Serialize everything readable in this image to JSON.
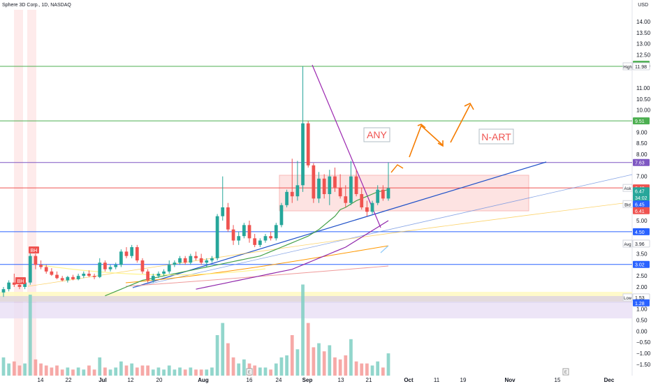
{
  "header": {
    "title": "Sphere 3D Corp., 1D, NASDAQ",
    "currency": "USD"
  },
  "chart_data": {
    "type": "candlestick",
    "ylim": [
      -1.5,
      14.5
    ],
    "y_ticks": [
      14.0,
      13.5,
      13.0,
      12.5,
      12.0,
      11.0,
      10.5,
      10.0,
      9.0,
      8.5,
      8.0,
      7.0,
      6.5,
      5.5,
      5.0,
      4.0,
      3.5,
      2.5,
      2.0,
      1.5,
      1.0,
      0.5,
      0.0,
      -0.5,
      -1.0,
      -1.5
    ],
    "y_tick_labels": [
      "14.00",
      "13.50",
      "13.00",
      "12.50",
      "12.00",
      "11.00",
      "10.50",
      "10.00",
      "9.00",
      "8.50",
      "8.00",
      "7.00",
      "6.50",
      "5.50",
      "5.00",
      "4.00",
      "3.50",
      "2.50",
      "2.00",
      "1.50",
      "1.00",
      "0.50",
      "0.00",
      "−0.50",
      "−1.00",
      "−1.50"
    ],
    "x_labels": [
      "14",
      "22",
      "Jul",
      "12",
      "20",
      "Aug",
      "16",
      "24",
      "Sep",
      "13",
      "21",
      "Oct",
      "11",
      "19",
      "Nov",
      "15",
      "Dec"
    ],
    "price_tags": [
      {
        "label": "12.07",
        "value": 12.07,
        "color": "#4caf50"
      },
      {
        "label": "11.98",
        "value": 11.98,
        "color": "#ffffff",
        "text_color": "#131722",
        "side_label": "High"
      },
      {
        "label": "9.51",
        "value": 9.51,
        "color": "#4caf50"
      },
      {
        "label": "7.63",
        "value": 7.63,
        "color": "#7e57c2"
      },
      {
        "label": "6.48",
        "value": 6.48,
        "color": "#ef5350",
        "side_label": "Ask"
      },
      {
        "label": "6.47",
        "value": 6.35,
        "color": "#26a69a"
      },
      {
        "label": "34:02",
        "value": 6.05,
        "color": "#26a69a"
      },
      {
        "label": "6.45",
        "value": 5.75,
        "color": "#2962ff",
        "side_label": "Bid"
      },
      {
        "label": "6.41",
        "value": 5.45,
        "color": "#ef5350"
      },
      {
        "label": "4.50",
        "value": 4.5,
        "color": "#2962ff"
      },
      {
        "label": "3.96",
        "value": 3.96,
        "color": "#ffffff",
        "text_color": "#131722",
        "side_label": "Avg"
      },
      {
        "label": "3.02",
        "value": 3.02,
        "color": "#2962ff"
      },
      {
        "label": "1.53",
        "value": 1.53,
        "color": "#ffffff",
        "text_color": "#131722",
        "side_label": "Low"
      },
      {
        "label": "1.28",
        "value": 1.28,
        "color": "#2962ff"
      }
    ],
    "horizontal_lines": [
      {
        "value": 11.98,
        "color": "#4caf50"
      },
      {
        "value": 9.51,
        "color": "#4caf50"
      },
      {
        "value": 7.63,
        "color": "#7e57c2"
      },
      {
        "value": 6.48,
        "color": "#ef5350"
      },
      {
        "value": 4.5,
        "color": "#2962ff"
      },
      {
        "value": 3.02,
        "color": "#2962ff"
      }
    ],
    "annotations": [
      {
        "text": "ANY",
        "color": "#ef5350"
      },
      {
        "text": "N-ART",
        "color": "#ef5350"
      },
      {
        "text": "BH",
        "color": "#ef5350"
      },
      {
        "text": "BH",
        "color": "#ef5350"
      }
    ],
    "event_markers": [
      "E",
      "E"
    ],
    "candles": [
      {
        "o": 1.75,
        "h": 2.0,
        "l": 1.55,
        "c": 1.9
      },
      {
        "o": 1.9,
        "h": 2.3,
        "l": 1.8,
        "c": 2.2
      },
      {
        "o": 2.2,
        "h": 2.6,
        "l": 2.0,
        "c": 2.1
      },
      {
        "o": 2.1,
        "h": 2.3,
        "l": 1.9,
        "c": 2.0
      },
      {
        "o": 2.0,
        "h": 2.4,
        "l": 1.9,
        "c": 2.2
      },
      {
        "o": 2.2,
        "h": 3.6,
        "l": 2.1,
        "c": 3.4
      },
      {
        "o": 3.4,
        "h": 3.5,
        "l": 2.8,
        "c": 3.0
      },
      {
        "o": 3.0,
        "h": 3.2,
        "l": 2.8,
        "c": 2.9
      },
      {
        "o": 2.9,
        "h": 3.0,
        "l": 2.6,
        "c": 2.7
      },
      {
        "o": 2.7,
        "h": 2.85,
        "l": 2.5,
        "c": 2.55
      },
      {
        "o": 2.55,
        "h": 2.7,
        "l": 2.35,
        "c": 2.4
      },
      {
        "o": 2.4,
        "h": 2.5,
        "l": 2.25,
        "c": 2.3
      },
      {
        "o": 2.3,
        "h": 2.5,
        "l": 2.2,
        "c": 2.45
      },
      {
        "o": 2.45,
        "h": 2.55,
        "l": 2.3,
        "c": 2.35
      },
      {
        "o": 2.35,
        "h": 2.6,
        "l": 2.3,
        "c": 2.5
      },
      {
        "o": 2.5,
        "h": 2.7,
        "l": 2.4,
        "c": 2.6
      },
      {
        "o": 2.6,
        "h": 2.75,
        "l": 2.45,
        "c": 2.5
      },
      {
        "o": 2.5,
        "h": 2.6,
        "l": 2.35,
        "c": 2.45
      },
      {
        "o": 2.45,
        "h": 3.3,
        "l": 2.4,
        "c": 3.1
      },
      {
        "o": 3.1,
        "h": 3.2,
        "l": 2.7,
        "c": 2.8
      },
      {
        "o": 2.8,
        "h": 3.0,
        "l": 2.7,
        "c": 2.9
      },
      {
        "o": 2.9,
        "h": 3.1,
        "l": 2.8,
        "c": 3.0
      },
      {
        "o": 3.0,
        "h": 3.7,
        "l": 2.9,
        "c": 3.6
      },
      {
        "o": 3.6,
        "h": 3.8,
        "l": 3.3,
        "c": 3.4
      },
      {
        "o": 3.4,
        "h": 3.9,
        "l": 3.3,
        "c": 3.8
      },
      {
        "o": 3.8,
        "h": 3.9,
        "l": 3.1,
        "c": 3.2
      },
      {
        "o": 3.2,
        "h": 3.3,
        "l": 2.6,
        "c": 2.7
      },
      {
        "o": 2.7,
        "h": 2.8,
        "l": 2.2,
        "c": 2.3
      },
      {
        "o": 2.3,
        "h": 2.6,
        "l": 2.2,
        "c": 2.5
      },
      {
        "o": 2.5,
        "h": 2.7,
        "l": 2.4,
        "c": 2.6
      },
      {
        "o": 2.6,
        "h": 2.8,
        "l": 2.5,
        "c": 2.7
      },
      {
        "o": 2.7,
        "h": 3.2,
        "l": 2.6,
        "c": 3.0
      },
      {
        "o": 3.0,
        "h": 3.2,
        "l": 2.9,
        "c": 3.1
      },
      {
        "o": 3.1,
        "h": 3.4,
        "l": 3.0,
        "c": 3.3
      },
      {
        "o": 3.3,
        "h": 3.4,
        "l": 3.0,
        "c": 3.1
      },
      {
        "o": 3.1,
        "h": 3.5,
        "l": 3.0,
        "c": 3.4
      },
      {
        "o": 3.4,
        "h": 3.6,
        "l": 3.2,
        "c": 3.3
      },
      {
        "o": 3.3,
        "h": 3.5,
        "l": 3.0,
        "c": 3.1
      },
      {
        "o": 3.1,
        "h": 3.3,
        "l": 2.9,
        "c": 3.2
      },
      {
        "o": 3.2,
        "h": 3.4,
        "l": 3.1,
        "c": 3.3
      },
      {
        "o": 3.3,
        "h": 5.3,
        "l": 3.2,
        "c": 5.2
      },
      {
        "o": 5.2,
        "h": 7.0,
        "l": 5.0,
        "c": 5.6
      },
      {
        "o": 5.6,
        "h": 5.8,
        "l": 4.5,
        "c": 4.6
      },
      {
        "o": 4.6,
        "h": 4.8,
        "l": 3.9,
        "c": 4.1
      },
      {
        "o": 4.1,
        "h": 4.5,
        "l": 3.9,
        "c": 4.3
      },
      {
        "o": 4.3,
        "h": 4.9,
        "l": 4.2,
        "c": 4.8
      },
      {
        "o": 4.8,
        "h": 5.0,
        "l": 4.0,
        "c": 4.2
      },
      {
        "o": 4.2,
        "h": 4.4,
        "l": 3.8,
        "c": 3.9
      },
      {
        "o": 3.9,
        "h": 4.2,
        "l": 3.8,
        "c": 4.1
      },
      {
        "o": 4.1,
        "h": 4.4,
        "l": 4.0,
        "c": 4.3
      },
      {
        "o": 4.3,
        "h": 4.5,
        "l": 4.1,
        "c": 4.2
      },
      {
        "o": 4.2,
        "h": 4.9,
        "l": 4.1,
        "c": 4.8
      },
      {
        "o": 4.8,
        "h": 5.8,
        "l": 4.7,
        "c": 5.7
      },
      {
        "o": 5.7,
        "h": 6.4,
        "l": 5.6,
        "c": 6.3
      },
      {
        "o": 6.3,
        "h": 7.8,
        "l": 5.8,
        "c": 6.1
      },
      {
        "o": 6.1,
        "h": 7.7,
        "l": 5.9,
        "c": 6.6
      },
      {
        "o": 6.6,
        "h": 11.98,
        "l": 6.3,
        "c": 9.4
      },
      {
        "o": 9.4,
        "h": 9.5,
        "l": 7.4,
        "c": 7.5
      },
      {
        "o": 7.5,
        "h": 7.6,
        "l": 5.8,
        "c": 6.0
      },
      {
        "o": 6.0,
        "h": 7.2,
        "l": 5.8,
        "c": 6.9
      },
      {
        "o": 6.9,
        "h": 7.1,
        "l": 6.0,
        "c": 6.2
      },
      {
        "o": 6.2,
        "h": 7.3,
        "l": 5.7,
        "c": 7.0
      },
      {
        "o": 7.0,
        "h": 7.4,
        "l": 6.3,
        "c": 6.5
      },
      {
        "o": 6.5,
        "h": 7.1,
        "l": 6.0,
        "c": 6.1
      },
      {
        "o": 6.1,
        "h": 6.6,
        "l": 5.6,
        "c": 5.8
      },
      {
        "o": 5.8,
        "h": 7.7,
        "l": 5.7,
        "c": 7.0
      },
      {
        "o": 7.0,
        "h": 7.3,
        "l": 6.1,
        "c": 6.2
      },
      {
        "o": 6.2,
        "h": 6.5,
        "l": 5.5,
        "c": 5.6
      },
      {
        "o": 5.6,
        "h": 5.9,
        "l": 5.2,
        "c": 5.4
      },
      {
        "o": 5.4,
        "h": 5.9,
        "l": 5.3,
        "c": 5.8
      },
      {
        "o": 5.8,
        "h": 6.6,
        "l": 5.7,
        "c": 6.4
      },
      {
        "o": 6.4,
        "h": 6.6,
        "l": 5.9,
        "c": 6.0
      },
      {
        "o": 6.0,
        "h": 7.63,
        "l": 5.9,
        "c": 6.47
      }
    ],
    "volumes": [
      0.9,
      0.6,
      0.7,
      0.5,
      0.6,
      4.0,
      0.8,
      0.6,
      0.5,
      0.4,
      0.5,
      0.3,
      0.4,
      0.3,
      0.4,
      0.3,
      0.5,
      0.3,
      0.9,
      0.4,
      0.3,
      0.4,
      0.7,
      0.5,
      0.6,
      0.4,
      0.5,
      0.5,
      0.3,
      0.4,
      0.3,
      0.5,
      0.3,
      0.4,
      0.3,
      0.4,
      0.3,
      0.3,
      0.3,
      0.4,
      2.0,
      2.6,
      1.6,
      0.9,
      0.6,
      0.8,
      0.6,
      0.5,
      0.4,
      0.4,
      0.3,
      0.6,
      0.9,
      1.0,
      2.0,
      1.3,
      4.5,
      2.6,
      1.4,
      1.6,
      1.2,
      1.5,
      0.9,
      0.8,
      1.0,
      1.8,
      0.7,
      0.6,
      0.6,
      0.5,
      0.7,
      0.4,
      1.1
    ],
    "ma_green": [
      1.6,
      1.7,
      1.8,
      1.9,
      2.0,
      2.1,
      2.2,
      2.3,
      2.35,
      2.4,
      2.45,
      2.5,
      2.55,
      2.6,
      2.65,
      2.7,
      2.75,
      2.8,
      2.85,
      2.9,
      2.95,
      3.0,
      3.05,
      3.1,
      3.15,
      3.2,
      3.25,
      3.3,
      3.35,
      3.4,
      3.5,
      3.6,
      3.7,
      3.8,
      3.9,
      4.0,
      4.1,
      4.2,
      4.3,
      4.45,
      4.6,
      4.8,
      5.0,
      5.2,
      5.5,
      5.6,
      5.75,
      5.9,
      6.0,
      6.1,
      6.2,
      6.3,
      6.35,
      6.4
    ],
    "ma_purple": [
      1.9,
      1.95,
      2.0,
      2.05,
      2.1,
      2.15,
      2.2,
      2.25,
      2.3,
      2.35,
      2.4,
      2.45,
      2.5,
      2.55,
      2.6,
      2.65,
      2.7,
      2.75,
      2.8,
      2.9,
      3.0,
      3.1,
      3.2,
      3.3,
      3.4,
      3.5,
      3.6,
      3.7,
      3.8,
      3.95,
      4.1,
      4.25,
      4.4,
      4.55,
      4.7,
      4.85,
      5.0
    ]
  }
}
